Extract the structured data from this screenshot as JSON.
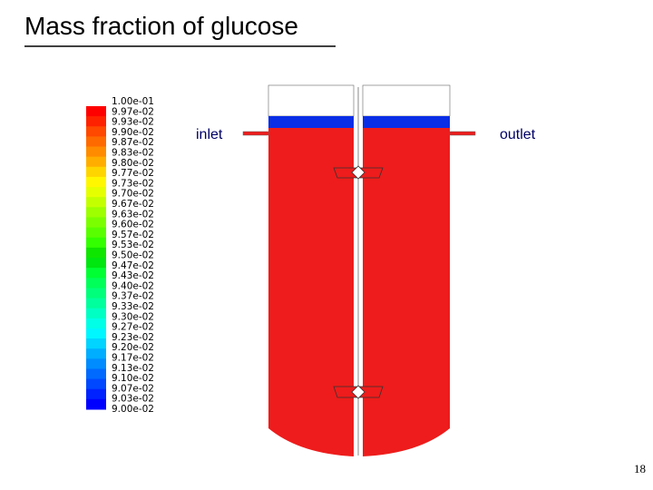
{
  "title": "Mass fraction of glucose",
  "colorbar": {
    "labels": [
      "1.00e-01",
      "9.97e-02",
      "9.93e-02",
      "9.90e-02",
      "9.87e-02",
      "9.83e-02",
      "9.80e-02",
      "9.77e-02",
      "9.73e-02",
      "9.70e-02",
      "9.67e-02",
      "9.63e-02",
      "9.60e-02",
      "9.57e-02",
      "9.53e-02",
      "9.50e-02",
      "9.47e-02",
      "9.43e-02",
      "9.40e-02",
      "9.37e-02",
      "9.33e-02",
      "9.30e-02",
      "9.27e-02",
      "9.23e-02",
      "9.20e-02",
      "9.17e-02",
      "9.13e-02",
      "9.10e-02",
      "9.07e-02",
      "9.03e-02",
      "9.00e-02"
    ]
  },
  "annotations": {
    "inlet": "inlet",
    "outlet": "outlet"
  },
  "page_number": "18"
}
